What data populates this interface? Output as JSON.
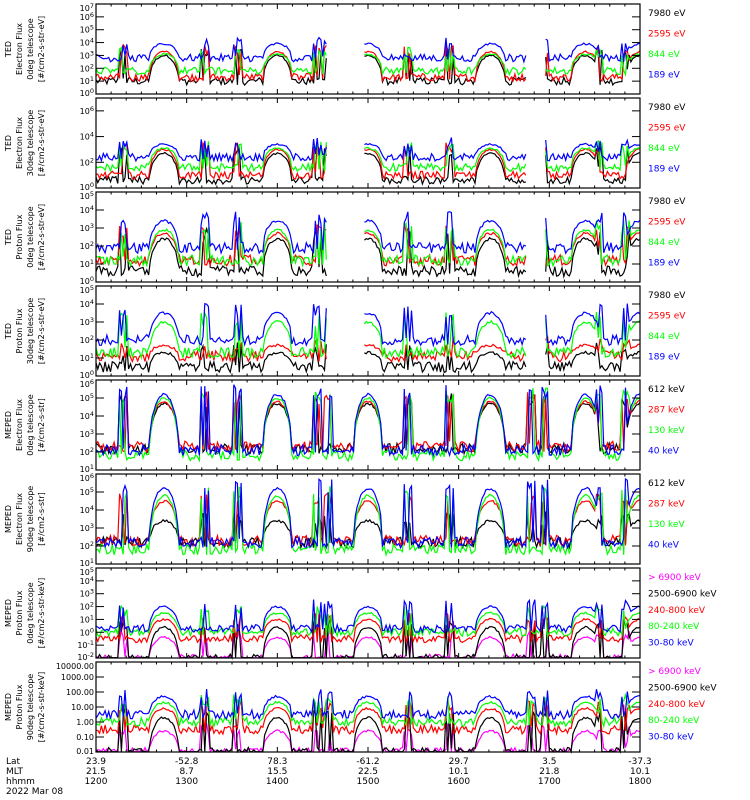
{
  "chart_data": {
    "type": "line",
    "title": "",
    "date": "2022 Mar 08",
    "x_axis": {
      "rows": [
        {
          "label": "Lat",
          "values": [
            "23.9",
            "-52.8",
            "78.3",
            "-61.2",
            "29.7",
            "3.5",
            "-37.3"
          ]
        },
        {
          "label": "MLT",
          "values": [
            "21.5",
            "8.7",
            "15.5",
            "22.5",
            "10.1",
            "21.8",
            "10.1"
          ]
        },
        {
          "label": "hhmm",
          "values": [
            "1200",
            "1300",
            "1400",
            "1500",
            "1600",
            "1700",
            "1800"
          ]
        }
      ],
      "range_hours": [
        12,
        18
      ]
    },
    "passes_center_hours": [
      12.75,
      14.0,
      15.0,
      16.35,
      17.4,
      18.0
    ],
    "panels": [
      {
        "ylabel": [
          "TED",
          "Electron Flux",
          "0deg telescope",
          "[#/cm2-s-str-eV]"
        ],
        "yticks": [
          "10^0",
          "10^1",
          "10^2",
          "10^3",
          "10^4",
          "10^5",
          "10^6",
          "10^7"
        ],
        "ylog": [
          0,
          7
        ],
        "series": [
          {
            "name": "7980 eV",
            "color": "#000000",
            "background": 1.0,
            "peak": 3.0
          },
          {
            "name": "2595 eV",
            "color": "#ff0000",
            "background": 1.3,
            "peak": 3.3
          },
          {
            "name": "844 eV",
            "color": "#00ff00",
            "background": 1.8,
            "peak": 3.1
          },
          {
            "name": "189 eV",
            "color": "#0000ff",
            "background": 2.8,
            "peak": 3.9
          }
        ]
      },
      {
        "ylabel": [
          "TED",
          "Electron Flux",
          "30deg telescope",
          "[#/cm2-s-str-eV]"
        ],
        "yticks": [
          "10^0",
          "10^2",
          "10^4",
          "10^6"
        ],
        "ylog": [
          0,
          7
        ],
        "series": [
          {
            "name": "7980 eV",
            "color": "#000000",
            "background": 0.6,
            "peak": 2.7
          },
          {
            "name": "2595 eV",
            "color": "#ff0000",
            "background": 1.0,
            "peak": 3.0
          },
          {
            "name": "844 eV",
            "color": "#00ff00",
            "background": 1.6,
            "peak": 3.1
          },
          {
            "name": "189 eV",
            "color": "#0000ff",
            "background": 2.4,
            "peak": 3.4
          }
        ]
      },
      {
        "ylabel": [
          "TED",
          "Proton Flux",
          "0deg telescope",
          "[#/cm2-s-str-eV]"
        ],
        "yticks": [
          "10^0",
          "10^1",
          "10^2",
          "10^3",
          "10^4",
          "10^5"
        ],
        "ylog": [
          0,
          5
        ],
        "series": [
          {
            "name": "7980 eV",
            "color": "#000000",
            "background": 0.6,
            "peak": 2.4
          },
          {
            "name": "2595 eV",
            "color": "#ff0000",
            "background": 1.2,
            "peak": 2.7
          },
          {
            "name": "844 eV",
            "color": "#00ff00",
            "background": 1.2,
            "peak": 2.9
          },
          {
            "name": "189 eV",
            "color": "#0000ff",
            "background": 1.9,
            "peak": 3.4
          }
        ]
      },
      {
        "ylabel": [
          "TED",
          "Proton Flux",
          "30deg telescope",
          "[#/cm2-s-str-eV]"
        ],
        "yticks": [
          "10^0",
          "10^1",
          "10^2",
          "10^3",
          "10^4",
          "10^5"
        ],
        "ylog": [
          0,
          5
        ],
        "series": [
          {
            "name": "7980 eV",
            "color": "#000000",
            "background": 0.5,
            "peak": 1.3
          },
          {
            "name": "2595 eV",
            "color": "#ff0000",
            "background": 1.1,
            "peak": 1.7
          },
          {
            "name": "844 eV",
            "color": "#00ff00",
            "background": 1.3,
            "peak": 3.0
          },
          {
            "name": "189 eV",
            "color": "#0000ff",
            "background": 2.0,
            "peak": 3.5
          }
        ]
      },
      {
        "ylabel": [
          "MEPED",
          "Electron Flux",
          "0deg telescope",
          "[#/cm2-s-str]"
        ],
        "yticks": [
          "10^1",
          "10^2",
          "10^3",
          "10^4",
          "10^5",
          "10^6"
        ],
        "ylog": [
          1,
          6
        ],
        "series": [
          {
            "name": "612 keV",
            "color": "#000000",
            "background": 2.2,
            "peak": 4.7
          },
          {
            "name": "287 keV",
            "color": "#ff0000",
            "background": 2.3,
            "peak": 4.8
          },
          {
            "name": "130 keV",
            "color": "#00ff00",
            "background": 1.8,
            "peak": 5.0
          },
          {
            "name": "40 keV",
            "color": "#0000ff",
            "background": 2.1,
            "peak": 5.2
          }
        ]
      },
      {
        "ylabel": [
          "MEPED",
          "Electron Flux",
          "90deg telescope",
          "[#/cm2-s-str]"
        ],
        "yticks": [
          "10^1",
          "10^2",
          "10^3",
          "10^4",
          "10^5",
          "10^6"
        ],
        "ylog": [
          1,
          6
        ],
        "series": [
          {
            "name": "612 keV",
            "color": "#000000",
            "background": 2.2,
            "peak": 3.4
          },
          {
            "name": "287 keV",
            "color": "#ff0000",
            "background": 2.3,
            "peak": 4.5
          },
          {
            "name": "130 keV",
            "color": "#00ff00",
            "background": 1.8,
            "peak": 4.8
          },
          {
            "name": "40 keV",
            "color": "#0000ff",
            "background": 2.2,
            "peak": 5.2
          }
        ]
      },
      {
        "ylabel": [
          "MEPED",
          "Proton Flux",
          "0deg telescope",
          "[#/cm2-s-str-keV]"
        ],
        "yticks": [
          "10^-2",
          "10^-1",
          "10^0",
          "10^1",
          "10^2",
          "10^3",
          "10^4",
          "10^5"
        ],
        "ylog": [
          -2,
          5
        ],
        "series": [
          {
            "name": "> 6900 keV",
            "color": "#ff00ff",
            "background": -2.0,
            "peak": -0.4
          },
          {
            "name": "2500-6900 keV",
            "color": "#000000",
            "background": -2.0,
            "peak": 0.4
          },
          {
            "name": "240-800 keV",
            "color": "#ff0000",
            "background": -0.5,
            "peak": 1.0
          },
          {
            "name": "80-240 keV",
            "color": "#00ff00",
            "background": 0.0,
            "peak": 1.5
          },
          {
            "name": "30-80 keV",
            "color": "#0000ff",
            "background": 0.3,
            "peak": 2.0
          }
        ]
      },
      {
        "ylabel": [
          "MEPED",
          "Proton Flux",
          "90deg telescope",
          "[#/cm2-s-str-keV]"
        ],
        "yticks": [
          "0.01",
          "0.10",
          "1.00",
          "10.00",
          "100.00",
          "1000.00",
          "10000.00"
        ],
        "ylog": [
          -2,
          4
        ],
        "series": [
          {
            "name": "> 6900 keV",
            "color": "#ff00ff",
            "background": -2.0,
            "peak": -0.6
          },
          {
            "name": "2500-6900 keV",
            "color": "#000000",
            "background": -2.0,
            "peak": 0.3
          },
          {
            "name": "240-800 keV",
            "color": "#ff0000",
            "background": -0.5,
            "peak": 0.9
          },
          {
            "name": "80-240 keV",
            "color": "#00ff00",
            "background": 0.0,
            "peak": 1.3
          },
          {
            "name": "30-80 keV",
            "color": "#0000ff",
            "background": 0.5,
            "peak": 1.7
          }
        ]
      }
    ]
  }
}
